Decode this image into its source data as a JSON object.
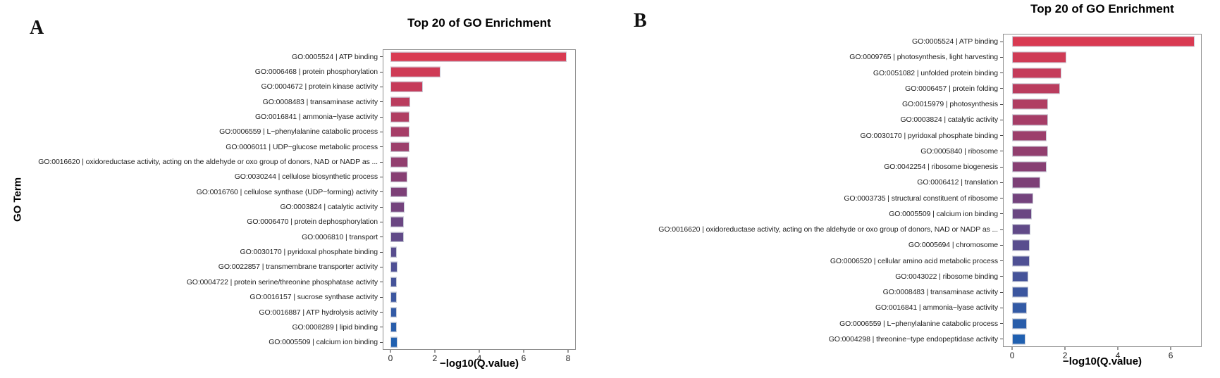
{
  "chart_data": [
    {
      "type": "bar",
      "orientation": "horizontal",
      "panel_label": "A",
      "title": "Top 20 of GO Enrichment",
      "xlabel": "−log10(Q.value)",
      "ylabel": "GO Term",
      "xlim": [
        -0.35,
        8.35
      ],
      "x_ticks": [
        0,
        2,
        4,
        6,
        8
      ],
      "grid": false,
      "legend": "none",
      "categories": [
        "GO:0005524 | ATP binding",
        "GO:0006468 | protein phosphorylation",
        "GO:0004672 | protein kinase activity",
        "GO:0008483 | transaminase activity",
        "GO:0016841 | ammonia−lyase activity",
        "GO:0006559 | L−phenylalanine catabolic process",
        "GO:0006011 | UDP−glucose metabolic process",
        "GO:0016620 | oxidoreductase activity, acting on the aldehyde or oxo group of donors, NAD or NADP as ...",
        "GO:0030244 | cellulose biosynthetic process",
        "GO:0016760 | cellulose synthase (UDP−forming) activity",
        "GO:0003824 | catalytic activity",
        "GO:0006470 | protein dephosphorylation",
        "GO:0006810 | transport",
        "GO:0030170 | pyridoxal phosphate binding",
        "GO:0022857 | transmembrane transporter activity",
        "GO:0004722 | protein serine/threonine phosphatase activity",
        "GO:0016157 | sucrose synthase activity",
        "GO:0016887 | ATP hydrolysis activity",
        "GO:0008289 | lipid binding",
        "GO:0005509 | calcium ion binding"
      ],
      "values": [
        7.95,
        2.25,
        1.45,
        0.9,
        0.85,
        0.85,
        0.85,
        0.8,
        0.75,
        0.75,
        0.65,
        0.6,
        0.6,
        0.3,
        0.32,
        0.3,
        0.3,
        0.3,
        0.3,
        0.32
      ],
      "bar_colors": [
        "#d93a52",
        "#cf3b56",
        "#c53b5a",
        "#ba3c5e",
        "#b03d62",
        "#a63d67",
        "#9c3e6b",
        "#923f6f",
        "#873f73",
        "#7d4077",
        "#74437d",
        "#6a4682",
        "#614a88",
        "#584d8e",
        "#4f5094",
        "#455399",
        "#3c569f",
        "#335aa5",
        "#295daa",
        "#2060b0"
      ]
    },
    {
      "type": "bar",
      "orientation": "horizontal",
      "panel_label": "B",
      "title": "Top 20 of GO Enrichment",
      "xlabel": "−log10(Q.value)",
      "ylabel": "",
      "xlim": [
        -0.35,
        7.17
      ],
      "x_ticks": [
        0,
        2,
        4,
        6
      ],
      "grid": false,
      "legend": "none",
      "categories": [
        "GO:0005524 | ATP binding",
        "GO:0009765 | photosynthesis, light harvesting",
        "GO:0051082 | unfolded protein binding",
        "GO:0006457 | protein folding",
        "GO:0015979 | photosynthesis",
        "GO:0003824 | catalytic activity",
        "GO:0030170 | pyridoxal phosphate binding",
        "GO:0005840 | ribosome",
        "GO:0042254 | ribosome biogenesis",
        "GO:0006412 | translation",
        "GO:0003735 | structural constituent of ribosome",
        "GO:0005509 | calcium ion binding",
        "GO:0016620 | oxidoreductase activity, acting on the aldehyde or oxo group of donors, NAD or NADP as ...",
        "GO:0005694 | chromosome",
        "GO:0006520 | cellular amino acid metabolic process",
        "GO:0043022 | ribosome binding",
        "GO:0008483 | transaminase activity",
        "GO:0016841 | ammonia−lyase activity",
        "GO:0006559 | L−phenylalanine catabolic process",
        "GO:0004298 | threonine−type endopeptidase activity"
      ],
      "values": [
        6.9,
        2.05,
        1.85,
        1.8,
        1.35,
        1.35,
        1.3,
        1.35,
        1.3,
        1.05,
        0.8,
        0.75,
        0.7,
        0.65,
        0.65,
        0.6,
        0.6,
        0.55,
        0.55,
        0.5
      ],
      "bar_colors": [
        "#d93a52",
        "#cf3b56",
        "#c53b5a",
        "#ba3c5e",
        "#b03d62",
        "#a63d67",
        "#9c3e6b",
        "#923f6f",
        "#873f73",
        "#7d4077",
        "#74437d",
        "#6a4682",
        "#614a88",
        "#584d8e",
        "#4f5094",
        "#455399",
        "#3c569f",
        "#335aa5",
        "#295daa",
        "#2060b0"
      ]
    }
  ]
}
